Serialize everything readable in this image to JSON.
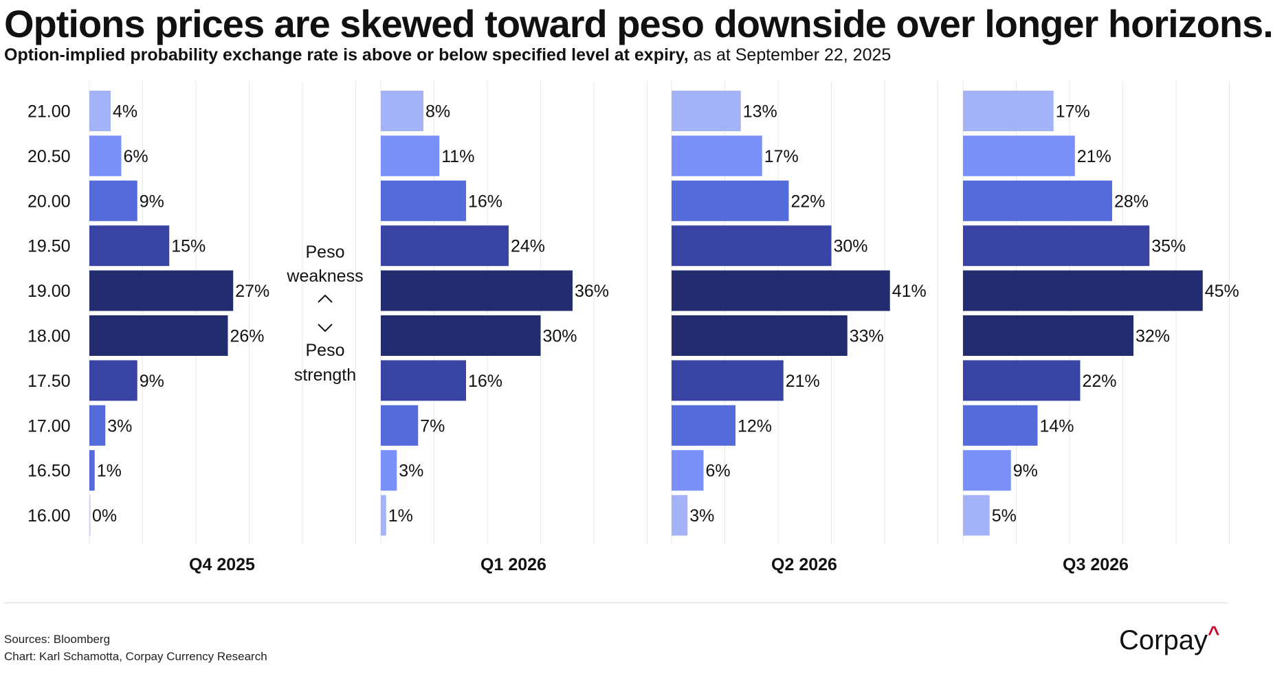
{
  "title": "Options prices are skewed toward peso downside over longer horizons.",
  "subtitle_bold": "Option-implied probability exchange rate is above or below specified level at expiry,",
  "subtitle_rest": " as at September 22, 2025",
  "annotation": {
    "weakness": [
      "Peso",
      "weakness"
    ],
    "strength": [
      "Peso",
      "strength"
    ],
    "up_arrow": "^",
    "down_arrow": "v"
  },
  "footer": {
    "sources": "Sources: Bloomberg",
    "credit": "Chart: Karl Schamotta, Corpay Currency Research"
  },
  "logo": {
    "text": "Corpay",
    "mark": "^"
  },
  "colors": {
    "lightest": "#a4b2f8",
    "light": "#7b8ff8",
    "medium": "#556bd9",
    "dark": "#3843a3",
    "darkest": "#232c6e",
    "logo_accent": "#c8102e"
  },
  "chart_data": {
    "type": "bar",
    "orientation": "horizontal",
    "categories": [
      "21.00",
      "20.50",
      "20.00",
      "19.50",
      "19.00",
      "18.00",
      "17.50",
      "17.00",
      "16.50",
      "16.00"
    ],
    "series": [
      {
        "name": "Q4 2025",
        "values": [
          4,
          6,
          9,
          15,
          27,
          26,
          9,
          3,
          1,
          0
        ],
        "labels": [
          "4%",
          "6%",
          "9%",
          "15%",
          "27%",
          "26%",
          "9%",
          "3%",
          "1%",
          "0%"
        ],
        "colors": [
          "lightest",
          "light",
          "medium",
          "dark",
          "darkest",
          "darkest",
          "dark",
          "medium",
          "medium",
          "lightest"
        ]
      },
      {
        "name": "Q1 2026",
        "values": [
          8,
          11,
          16,
          24,
          36,
          30,
          16,
          7,
          3,
          1
        ],
        "labels": [
          "8%",
          "11%",
          "16%",
          "24%",
          "36%",
          "30%",
          "16%",
          "7%",
          "3%",
          "1%"
        ],
        "colors": [
          "lightest",
          "light",
          "medium",
          "dark",
          "darkest",
          "darkest",
          "dark",
          "medium",
          "light",
          "lightest"
        ]
      },
      {
        "name": "Q2 2026",
        "values": [
          13,
          17,
          22,
          30,
          41,
          33,
          21,
          12,
          6,
          3
        ],
        "labels": [
          "13%",
          "17%",
          "22%",
          "30%",
          "41%",
          "33%",
          "21%",
          "12%",
          "6%",
          "3%"
        ],
        "colors": [
          "lightest",
          "light",
          "medium",
          "dark",
          "darkest",
          "darkest",
          "dark",
          "medium",
          "light",
          "lightest"
        ]
      },
      {
        "name": "Q3 2026",
        "values": [
          17,
          21,
          28,
          35,
          45,
          32,
          22,
          14,
          9,
          5
        ],
        "labels": [
          "17%",
          "21%",
          "28%",
          "35%",
          "45%",
          "32%",
          "22%",
          "14%",
          "9%",
          "5%"
        ],
        "colors": [
          "lightest",
          "light",
          "medium",
          "dark",
          "darkest",
          "darkest",
          "dark",
          "medium",
          "light",
          "lightest"
        ]
      }
    ],
    "xlim": [
      0,
      50
    ],
    "grid": true,
    "legend": "none"
  }
}
